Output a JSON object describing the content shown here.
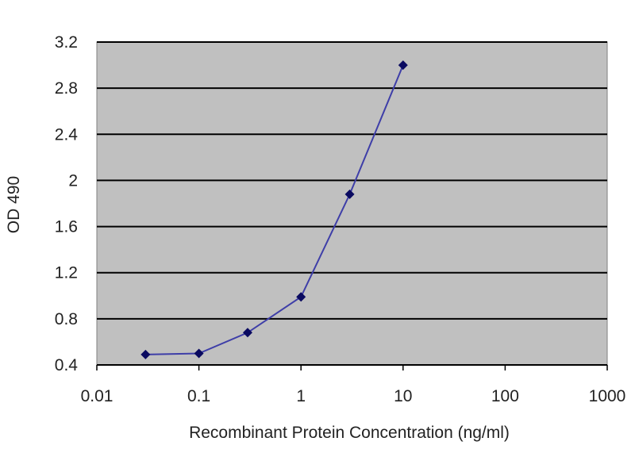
{
  "chart_data": {
    "type": "line",
    "title": "",
    "xlabel": "Recombinant Protein Concentration (ng/ml)",
    "ylabel": "OD 490",
    "x_scale": "log",
    "xlim": [
      0.01,
      1000
    ],
    "ylim": [
      0.4,
      3.2
    ],
    "x_ticks": [
      "0.01",
      "0.1",
      "1",
      "10",
      "100",
      "1000"
    ],
    "y_ticks": [
      "0.4",
      "0.8",
      "1.2",
      "1.6",
      "2",
      "2.4",
      "2.8",
      "3.2"
    ],
    "grid": "horizontal",
    "legend": "none",
    "series": [
      {
        "x": [
          0.03,
          0.1,
          0.3,
          1,
          3,
          10
        ],
        "y": [
          0.49,
          0.5,
          0.68,
          0.99,
          1.88,
          3.0
        ]
      }
    ],
    "colors": {
      "plot_background": "#c0c0c0",
      "gridline": "#000000",
      "series_line": "#3e3ea8",
      "series_marker": "#0a0a60"
    }
  }
}
